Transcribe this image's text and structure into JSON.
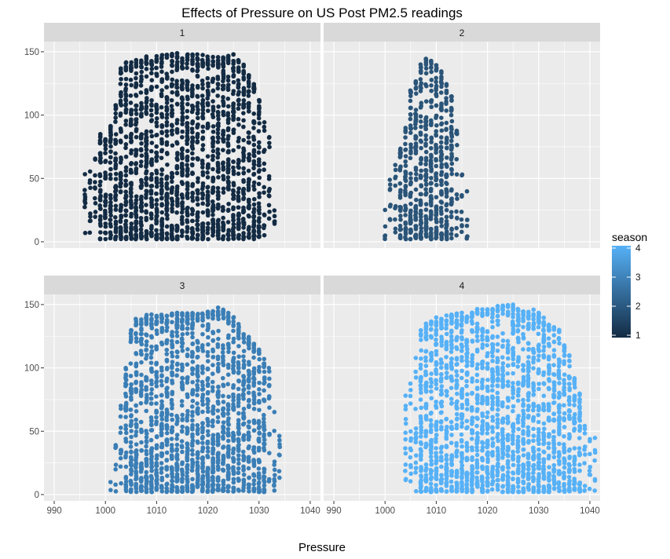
{
  "chart_data": {
    "type": "scatter",
    "title": "Effects of Pressure on US Post PM2.5 readings",
    "xlabel": "Pressure",
    "ylabel": "",
    "xlim": [
      988,
      1042
    ],
    "ylim": [
      -5,
      158
    ],
    "x_ticks": [
      990,
      1000,
      1010,
      1020,
      1030,
      1040
    ],
    "y_ticks": [
      0,
      50,
      100,
      150
    ],
    "grid": true,
    "facet_layout": "2x2",
    "legend": {
      "title": "season",
      "position": "right",
      "type": "gradient",
      "range": [
        1,
        4
      ],
      "breaks": [
        1,
        2,
        3,
        4
      ],
      "low_color": "#132B43",
      "high_color": "#56B1F7"
    },
    "panels": [
      {
        "label": "1",
        "season": 1,
        "color": "#132B43",
        "x_range": [
          996,
          1033
        ],
        "profile": [
          [
            996,
            55
          ],
          [
            997,
            58
          ],
          [
            998,
            68
          ],
          [
            999,
            85
          ],
          [
            1000,
            82
          ],
          [
            1001,
            92
          ],
          [
            1002,
            108
          ],
          [
            1003,
            140
          ],
          [
            1004,
            142
          ],
          [
            1006,
            145
          ],
          [
            1008,
            147
          ],
          [
            1010,
            148
          ],
          [
            1014,
            149
          ],
          [
            1018,
            148
          ],
          [
            1022,
            146
          ],
          [
            1025,
            148
          ],
          [
            1027,
            140
          ],
          [
            1029,
            125
          ],
          [
            1030,
            112
          ],
          [
            1031,
            95
          ],
          [
            1032,
            85
          ],
          [
            1033,
            30
          ]
        ]
      },
      {
        "label": "2",
        "season": 2,
        "color": "#2A5478",
        "x_range": [
          1000,
          1016
        ],
        "profile": [
          [
            1000,
            30
          ],
          [
            1001,
            50
          ],
          [
            1002,
            65
          ],
          [
            1003,
            75
          ],
          [
            1004,
            90
          ],
          [
            1005,
            120
          ],
          [
            1006,
            130
          ],
          [
            1007,
            140
          ],
          [
            1008,
            145
          ],
          [
            1009,
            145
          ],
          [
            1010,
            140
          ],
          [
            1011,
            135
          ],
          [
            1012,
            125
          ],
          [
            1013,
            115
          ],
          [
            1014,
            90
          ],
          [
            1015,
            55
          ],
          [
            1016,
            45
          ]
        ]
      },
      {
        "label": "3",
        "season": 3,
        "color": "#3A7EB6",
        "x_range": [
          1001,
          1034
        ],
        "profile": [
          [
            1001,
            10
          ],
          [
            1002,
            40
          ],
          [
            1003,
            75
          ],
          [
            1004,
            100
          ],
          [
            1005,
            130
          ],
          [
            1006,
            140
          ],
          [
            1008,
            142
          ],
          [
            1010,
            143
          ],
          [
            1015,
            144
          ],
          [
            1019,
            145
          ],
          [
            1022,
            148
          ],
          [
            1024,
            145
          ],
          [
            1026,
            135
          ],
          [
            1028,
            125
          ],
          [
            1030,
            115
          ],
          [
            1032,
            100
          ],
          [
            1033,
            70
          ],
          [
            1034,
            50
          ]
        ]
      },
      {
        "label": "4",
        "season": 4,
        "color": "#56B1F7",
        "x_range": [
          1004,
          1041
        ],
        "profile": [
          [
            1004,
            85
          ],
          [
            1005,
            90
          ],
          [
            1006,
            110
          ],
          [
            1007,
            130
          ],
          [
            1008,
            135
          ],
          [
            1010,
            140
          ],
          [
            1014,
            143
          ],
          [
            1018,
            147
          ],
          [
            1020,
            150
          ],
          [
            1026,
            150
          ],
          [
            1030,
            145
          ],
          [
            1032,
            135
          ],
          [
            1034,
            130
          ],
          [
            1036,
            110
          ],
          [
            1037,
            95
          ],
          [
            1038,
            80
          ],
          [
            1039,
            60
          ],
          [
            1040,
            50
          ],
          [
            1041,
            45
          ]
        ]
      }
    ]
  }
}
